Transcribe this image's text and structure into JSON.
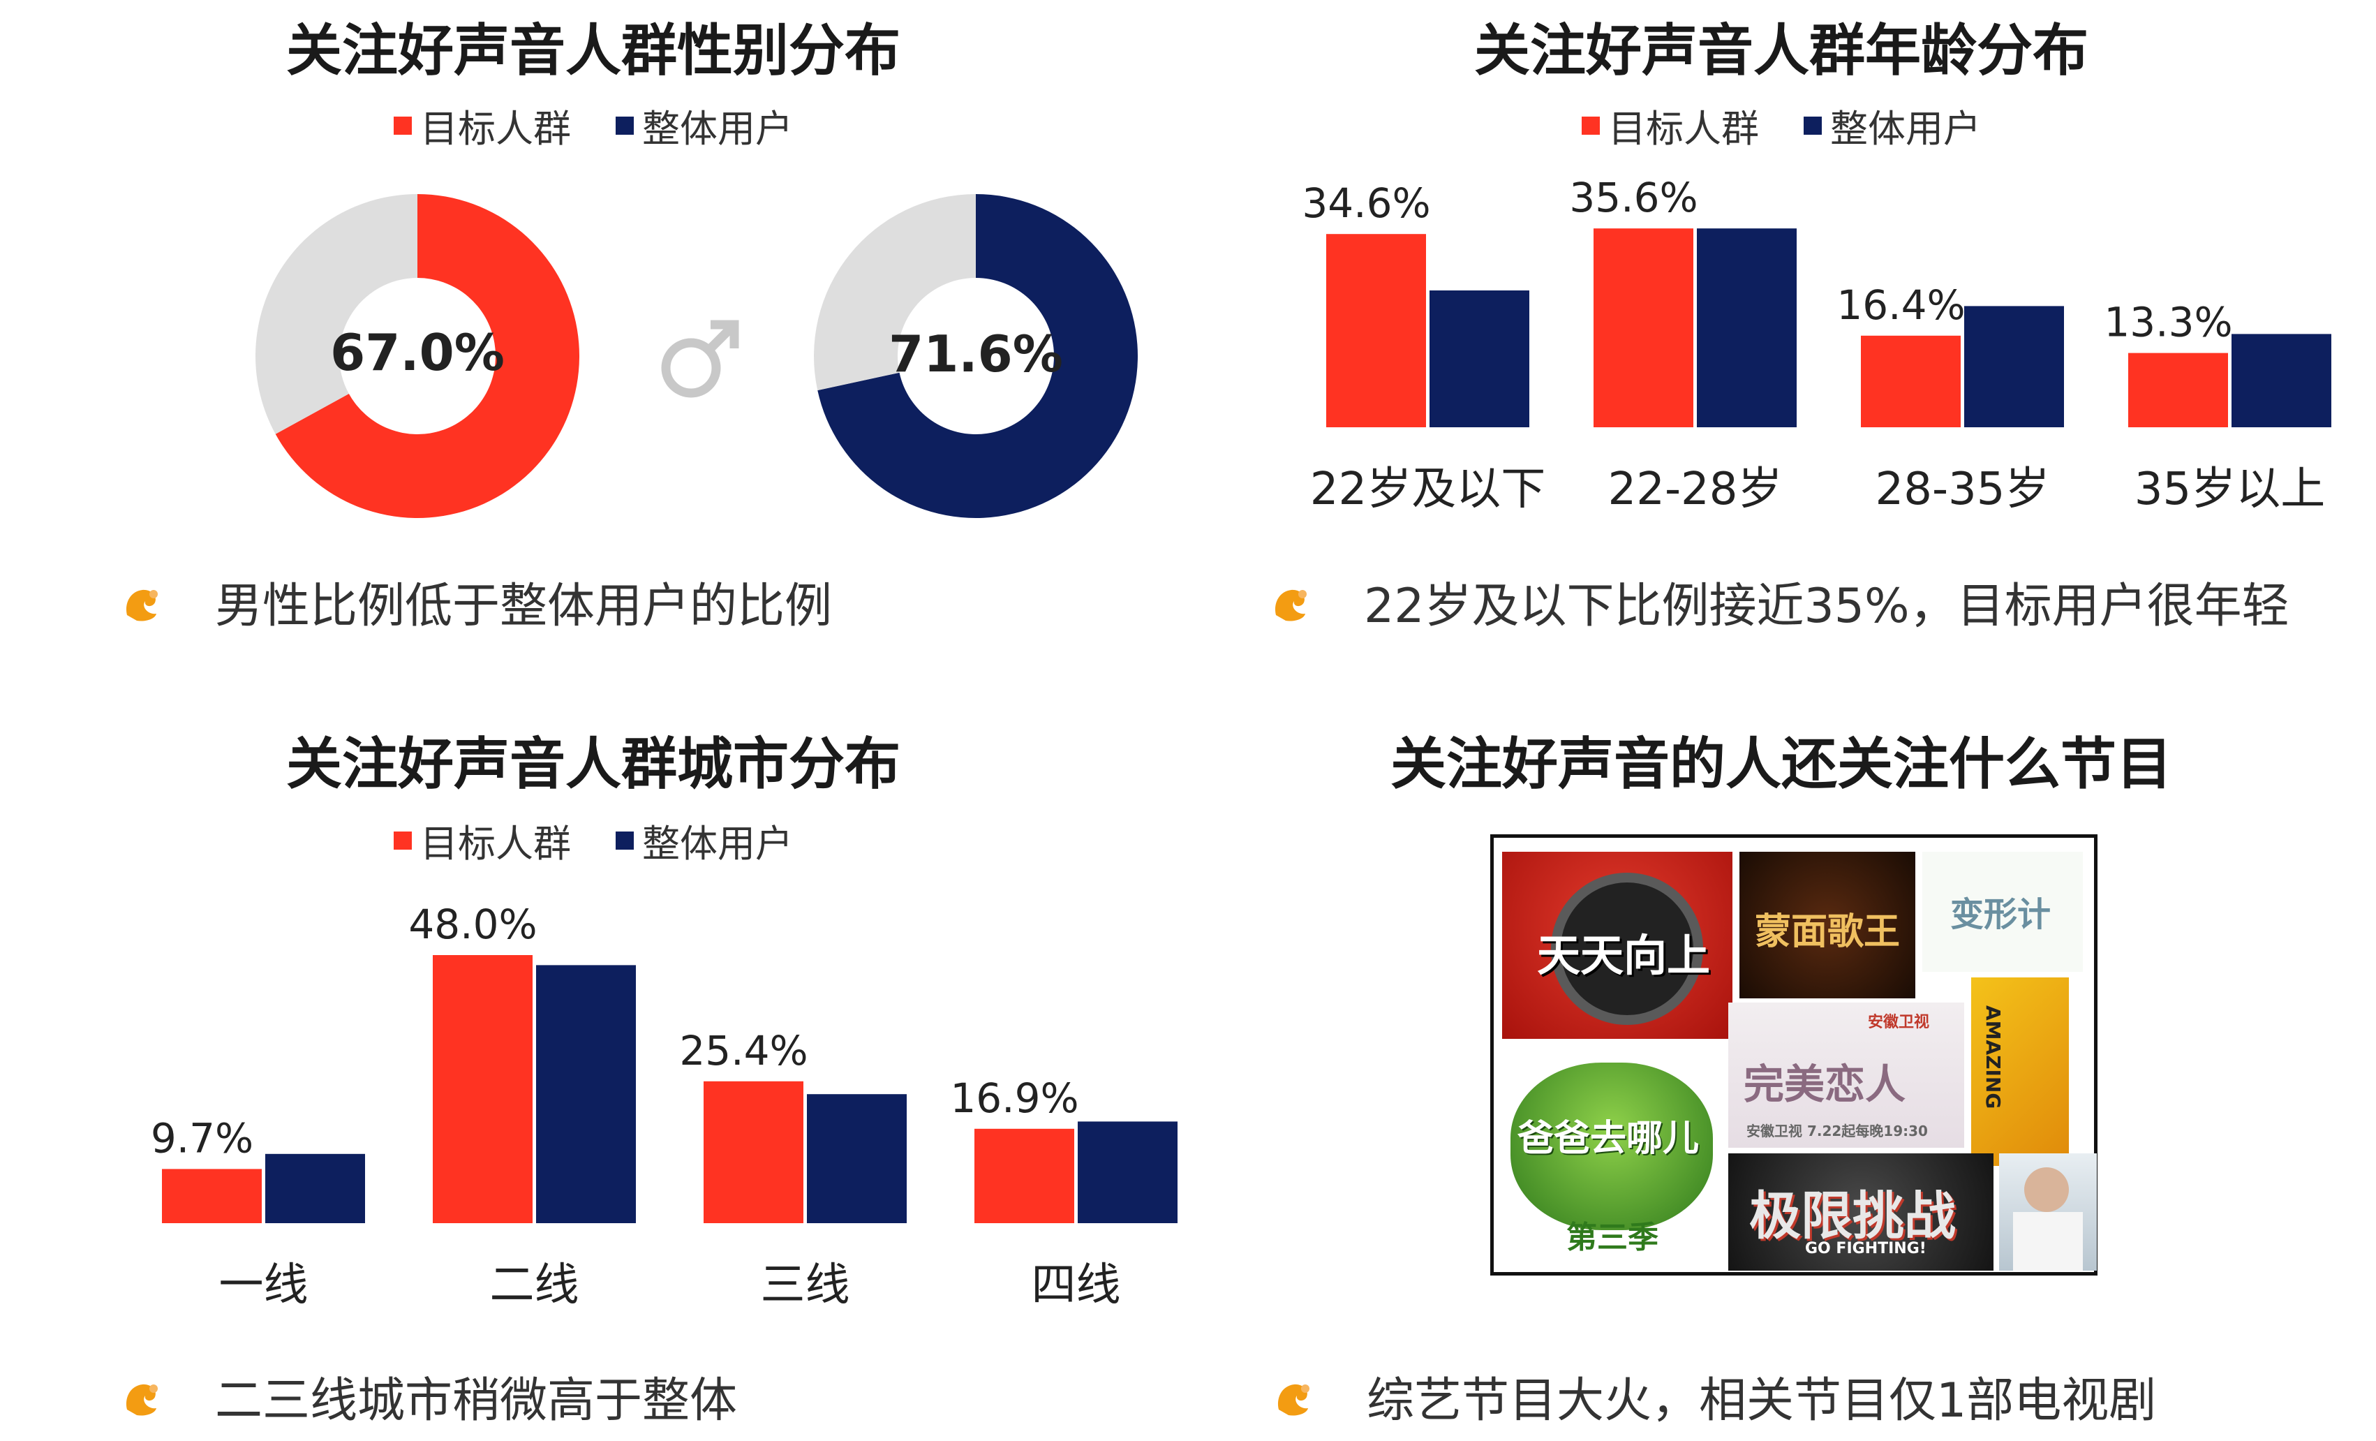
{
  "colors": {
    "target": "#ff3322",
    "overall": "#0d1f5e",
    "rest": "#dedede",
    "note_icon": "#f39c12"
  },
  "legend": {
    "target": "目标人群",
    "overall": "整体用户"
  },
  "gender": {
    "title": "关注好声音人群性别分布",
    "note": "男性比例低于整体用户的比例",
    "male_icon": "male-symbol-icon",
    "target_label": "67.0%",
    "overall_label": "71.6%"
  },
  "age": {
    "title": "关注好声音人群年龄分布",
    "note": "22岁及以下比例接近35%，目标用户很年轻"
  },
  "city": {
    "title": "关注好声音人群城市分布",
    "note": "二三线城市稍微高于整体"
  },
  "programs": {
    "title": "关注好声音的人还关注什么节目",
    "note": "综艺节目大火，相关节目仅1部电视剧",
    "tiles": [
      {
        "text": "天天向上"
      },
      {
        "text": "蒙面歌王"
      },
      {
        "text": "变形计"
      },
      {
        "text": "第三季"
      },
      {
        "text": "爸爸去哪儿"
      },
      {
        "text": "安徽卫视"
      },
      {
        "text": "完美恋人"
      },
      {
        "text": "安徽卫视 7.22起每晚19:30"
      },
      {
        "text": "AMAZING"
      },
      {
        "text": "极限挑战"
      },
      {
        "text": "GO FIGHTING!"
      }
    ]
  },
  "chart_data": [
    {
      "type": "pie",
      "title": "关注好声音人群性别分布",
      "series": [
        {
          "name": "目标人群",
          "slices": [
            {
              "label": "男",
              "value": 67.0
            },
            {
              "label": "",
              "value": 33.0
            }
          ]
        },
        {
          "name": "整体用户",
          "slices": [
            {
              "label": "男",
              "value": 71.6
            },
            {
              "label": "",
              "value": 28.4
            }
          ]
        }
      ]
    },
    {
      "type": "bar",
      "title": "关注好声音人群年龄分布",
      "categories": [
        "22岁及以下",
        "22-28岁",
        "28-35岁",
        "35岁以上"
      ],
      "series": [
        {
          "name": "目标人群",
          "values": [
            34.6,
            35.6,
            16.4,
            13.3
          ]
        },
        {
          "name": "整体用户",
          "values": [
            24.5,
            35.6,
            21.7,
            16.7
          ]
        }
      ],
      "data_labels": [
        "34.6%",
        "35.6%",
        "16.4%",
        "13.3%"
      ],
      "ylim": [
        0,
        40
      ]
    },
    {
      "type": "bar",
      "title": "关注好声音人群城市分布",
      "categories": [
        "一线",
        "二线",
        "三线",
        "四线"
      ],
      "series": [
        {
          "name": "目标人群",
          "values": [
            9.7,
            48.0,
            25.4,
            16.9
          ]
        },
        {
          "name": "整体用户",
          "values": [
            12.4,
            46.2,
            23.1,
            18.2
          ]
        }
      ],
      "data_labels": [
        "9.7%",
        "48.0%",
        "25.4%",
        "16.9%"
      ],
      "ylim": [
        0,
        55
      ]
    }
  ]
}
